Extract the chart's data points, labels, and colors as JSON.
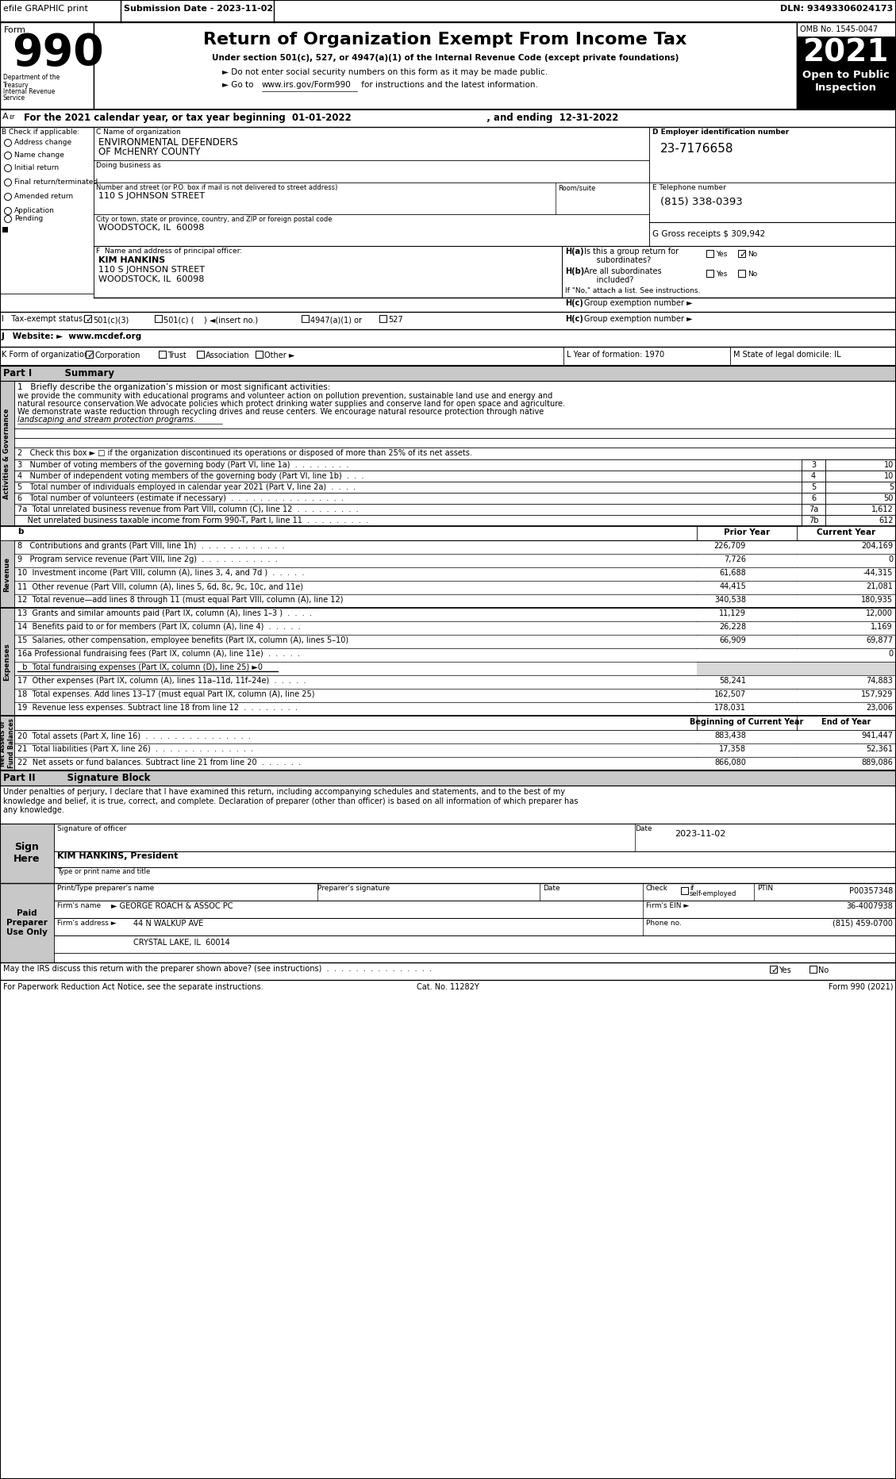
{
  "efile_bar": "efile GRAPHIC print",
  "submission_date": "Submission Date - 2023-11-02",
  "dln": "DLN: 93493306024173",
  "form_number": "990",
  "main_title": "Return of Organization Exempt From Income Tax",
  "subtitle1": "Under section 501(c), 527, or 4947(a)(1) of the Internal Revenue Code (except private foundations)",
  "subtitle2": "► Do not enter social security numbers on this form as it may be made public.",
  "subtitle3": "► Go to www.irs.gov/Form990 for instructions and the latest information.",
  "url": "www.irs.gov/Form990",
  "omb": "OMB No. 1545-0047",
  "year": "2021",
  "open_public": "Open to Public\nInspection",
  "dept_label": "Department of the\nTreasury\nInternal Revenue\nService",
  "line_a_bold": "For the 2021 calendar year, or tax year beginning 01-01-2022   , and ending 12-31-2022",
  "org_name_label": "C Name of organization",
  "org_name1": "ENVIRONMENTAL DEFENDERS",
  "org_name2": "OF McHENRY COUNTY",
  "dba_label": "Doing business as",
  "street_label": "Number and street (or P.O. box if mail is not delivered to street address)",
  "room_label": "Room/suite",
  "street": "110 S JOHNSON STREET",
  "city_label": "City or town, state or province, country, and ZIP or foreign postal code",
  "city": "WOODSTOCK, IL  60098",
  "ein_label": "D Employer identification number",
  "ein": "23-7176658",
  "phone_label": "E Telephone number",
  "phone": "(815) 338-0393",
  "gross_label": "G Gross receipts $ 309,942",
  "principal_label": "F  Name and address of principal officer:",
  "principal_name": "KIM HANKINS",
  "principal_addr1": "110 S JOHNSON STREET",
  "principal_addr2": "WOODSTOCK, IL  60098",
  "ha_text1": "Is this a group return for",
  "ha_text2": "subordinates?",
  "hb_text1": "Are all subordinates",
  "hb_text2": "included?",
  "hb_note": "If \"No,\" attach a list. See instructions.",
  "hc_text": "Group exemption number ►",
  "website": "www.mcdef.org",
  "year_form": "L Year of formation: 1970",
  "state_dom": "M State of legal domicile: IL",
  "part1_title": "Summary",
  "line1_mission": "1   Briefly describe the organization’s mission or most significant activities:",
  "mission_text1": "we provide the community with educational programs and volunteer action on pollution prevention, sustainable land use and energy and",
  "mission_text2": "natural resource conservation.We advocate policies which protect drinking water supplies and conserve land for open space and agriculture.",
  "mission_text3": "We demonstrate waste reduction through recycling drives and reuse centers. We encourage natural resource protection through native",
  "mission_text4": "landscaping and stream protection programs.",
  "line2_check": "2   Check this box ► □ if the organization discontinued its operations or disposed of more than 25% of its net assets.",
  "line3_label": "3   Number of voting members of the governing body (Part VI, line 1a)  .  .  .  .  .  .  .  .",
  "line4_label": "4   Number of independent voting members of the governing body (Part VI, line 1b)  .  .  .",
  "line5_label": "5   Total number of individuals employed in calendar year 2021 (Part V, line 2a)  .  .  .  .",
  "line6_label": "6   Total number of volunteers (estimate if necessary)  .  .  .  .  .  .  .  .  .  .  .  .  .  .  .  .",
  "line7a_label": "7a  Total unrelated business revenue from Part VIII, column (C), line 12  .  .  .  .  .  .  .  .  .",
  "line7b_label": "    Net unrelated business taxable income from Form 990-T, Part I, line 11  .  .  .  .  .  .  .  .  .",
  "line8_label": "8   Contributions and grants (Part VIII, line 1h)  .  .  .  .  .  .  .  .  .  .  .  .",
  "line9_label": "9   Program service revenue (Part VIII, line 2g)  .  .  .  .  .  .  .  .  .  .  .",
  "line10_label": "10  Investment income (Part VIII, column (A), lines 3, 4, and 7d )  .  .  .  .  .",
  "line11_label": "11  Other revenue (Part VIII, column (A), lines 5, 6d, 8c, 9c, 10c, and 11e)",
  "line12_label": "12  Total revenue—add lines 8 through 11 (must equal Part VIII, column (A), line 12)",
  "line13_label": "13  Grants and similar amounts paid (Part IX, column (A), lines 1–3 )  .  .  .  .",
  "line14_label": "14  Benefits paid to or for members (Part IX, column (A), line 4)  .  .  .  .  .",
  "line15_label": "15  Salaries, other compensation, employee benefits (Part IX, column (A), lines 5–10)",
  "line16a_label": "16a Professional fundraising fees (Part IX, column (A), line 11e)  .  .  .  .  .",
  "line16b_label": "  b  Total fundraising expenses (Part IX, column (D), line 25) ►0",
  "line17_label": "17  Other expenses (Part IX, column (A), lines 11a–11d, 11f–24e)  .  .  .  .  .",
  "line18_label": "18  Total expenses. Add lines 13–17 (must equal Part IX, column (A), line 25)",
  "line19_label": "19  Revenue less expenses. Subtract line 18 from line 12  .  .  .  .  .  .  .  .",
  "line20_label": "20  Total assets (Part X, line 16)  .  .  .  .  .  .  .  .  .  .  .  .  .  .  .",
  "line21_label": "21  Total liabilities (Part X, line 26)  .  .  .  .  .  .  .  .  .  .  .  .  .  .",
  "line22_label": "22  Net assets or fund balances. Subtract line 21 from line 20  .  .  .  .  .  .",
  "sig_text": "Under penalties of perjury, I declare that I have examined this return, including accompanying schedules and statements, and to the best of my\nknowledge and belief, it is true, correct, and complete. Declaration of preparer (other than officer) is based on all information of which preparer has\nany knowledge.",
  "sig_date_val": "2023-11-02",
  "sig_name_val": "KIM HANKINS, President",
  "sig_title_label": "Type or print name and title",
  "ptin_val": "P00357348",
  "firm_name_val": "GEORGE ROACH & ASSOC PC",
  "firm_ein_val": "36-4007938",
  "firm_addr_val": "44 N WALKUP AVE",
  "firm_city_val": "CRYSTAL LAKE, IL  60014",
  "firm_phone_val": "(815) 459-0700",
  "footer1": "For Paperwork Reduction Act Notice, see the separate instructions.",
  "footer2": "Cat. No. 11282Y",
  "footer3": "Form 990 (2021)"
}
